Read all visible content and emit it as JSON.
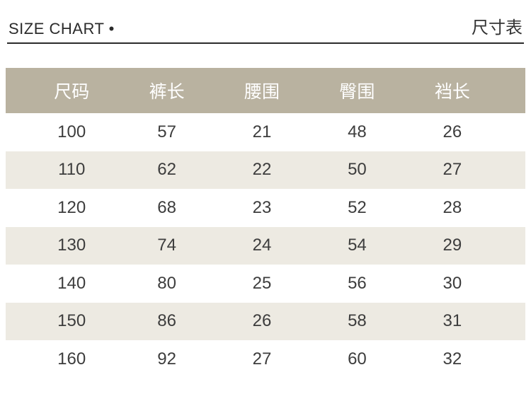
{
  "page_header": {
    "title": "SIZE CHART •",
    "title_cn": "尺寸表"
  },
  "chart_data": {
    "type": "table",
    "title": "SIZE CHART 尺寸表",
    "columns": [
      "尺码",
      "裤长",
      "腰围",
      "臀围",
      "裆长"
    ],
    "rows": [
      [
        100,
        57,
        21,
        48,
        26
      ],
      [
        110,
        62,
        22,
        50,
        27
      ],
      [
        120,
        68,
        23,
        52,
        28
      ],
      [
        130,
        74,
        24,
        54,
        29
      ],
      [
        140,
        80,
        25,
        56,
        30
      ],
      [
        150,
        86,
        26,
        58,
        31
      ],
      [
        160,
        92,
        27,
        60,
        32
      ]
    ]
  },
  "colors": {
    "table_header_bg": "#b9b2a0",
    "row_alt_bg": "#edeae2",
    "data_text": "#3d3d3d",
    "header_text": "#ffffff",
    "title_text": "#2b2b2b",
    "rule_line": "#2b2b2b"
  }
}
